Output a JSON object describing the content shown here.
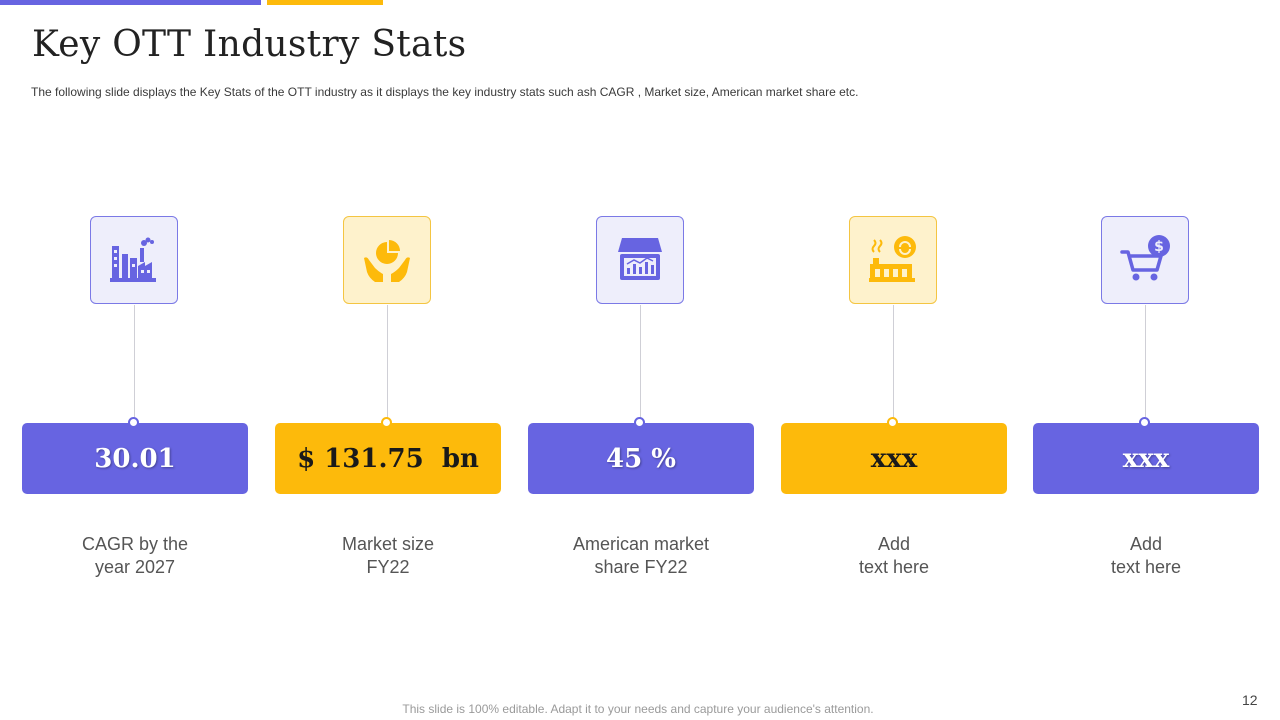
{
  "slide": {
    "title": "Key OTT Industry Stats",
    "subtitle": "The following  slide displays the Key Stats of the OTT  industry as it displays the  key industry stats such ash CAGR , Market size, American market share etc.",
    "footer": "This slide is 100% editable. Adapt it to your needs and capture your audience's attention.",
    "page_number": "12"
  },
  "colors": {
    "purple": "#6764E1",
    "yellow": "#FDBA0B",
    "purple_light": "#EEEEFB",
    "yellow_light": "#FEF2CC"
  },
  "stats": [
    {
      "icon": "factory-icon",
      "value": "30.01",
      "label": "CAGR by the\nyear 2027",
      "theme": "purple"
    },
    {
      "icon": "hands-pie-chart-icon",
      "value": "$ 131.75  bn",
      "label": "Market size\nFY22",
      "theme": "yellow"
    },
    {
      "icon": "market-store-chart-icon",
      "value": "45 %",
      "label": "American market\nshare FY22",
      "theme": "purple"
    },
    {
      "icon": "factory-recycle-icon",
      "value": "xxx",
      "label": "Add\ntext here",
      "theme": "yellow"
    },
    {
      "icon": "shopping-cart-dollar-icon",
      "value": "xxx",
      "label": "Add\ntext here",
      "theme": "purple"
    }
  ]
}
